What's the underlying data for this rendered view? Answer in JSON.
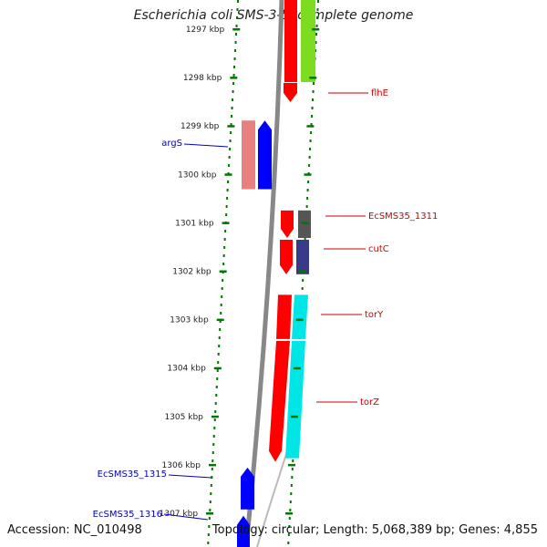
{
  "title": "Escherichia coli SMS-3-5, complete genome",
  "footer": {
    "accession": "Accession: NC_010498",
    "topology": "Topology: circular; Length: 5,068,389 bp; Genes: 4,855"
  },
  "ticks": [
    {
      "kbp": 1297,
      "label": "1297 kbp"
    },
    {
      "kbp": 1298,
      "label": "1298 kbp"
    },
    {
      "kbp": 1299,
      "label": "1299 kbp"
    },
    {
      "kbp": 1300,
      "label": "1300 kbp"
    },
    {
      "kbp": 1301,
      "label": "1301 kbp"
    },
    {
      "kbp": 1302,
      "label": "1302 kbp"
    },
    {
      "kbp": 1303,
      "label": "1303 kbp"
    },
    {
      "kbp": 1304,
      "label": "1304 kbp"
    },
    {
      "kbp": 1305,
      "label": "1305 kbp"
    },
    {
      "kbp": 1306,
      "label": "1306 kbp"
    },
    {
      "kbp": 1307,
      "label": "1307 kbp"
    }
  ],
  "colors": {
    "forward": "#ff0000",
    "reverse": "#0000ff",
    "reverse_light": "#e88080",
    "backbone": "#808080",
    "dots": "#007700",
    "label_forward": "#cc0000",
    "label_reverse": "#0000bb",
    "flhE_cog": "#7ddc20",
    "ecsms1311_cog": "#555555",
    "cutC_cog": "#3a3a8a",
    "tor_cog": "#00e5e5"
  },
  "genes": [
    {
      "name": "flhE",
      "label": "flhE",
      "strand": "forward",
      "start_kbp": 1296.6,
      "end_kbp": 1298.5,
      "cog_color_key": "flhE_cog"
    },
    {
      "name": "argS",
      "label": "argS",
      "strand": "reverse",
      "start_kbp": 1299.0,
      "end_kbp": 1300.4,
      "cog_color_key": "reverse_light"
    },
    {
      "name": "EcSMS35_1311",
      "label": "EcSMS35_1311",
      "strand": "forward",
      "start_kbp": 1300.65,
      "end_kbp": 1301.2,
      "cog_color_key": "ecsms1311_cog"
    },
    {
      "name": "cutC",
      "label": "cutC",
      "strand": "forward",
      "start_kbp": 1301.2,
      "end_kbp": 1301.95,
      "cog_color_key": "cutC_cog"
    },
    {
      "name": "torY",
      "label": "torY",
      "strand": "forward",
      "start_kbp": 1302.3,
      "end_kbp": 1303.4,
      "cog_color_key": "tor_cog"
    },
    {
      "name": "torZ",
      "label": "torZ",
      "strand": "forward",
      "start_kbp": 1303.4,
      "end_kbp": 1305.9,
      "cog_color_key": "tor_cog"
    },
    {
      "name": "EcSMS35_1315",
      "label": "EcSMS35_1315",
      "strand": "reverse",
      "start_kbp": 1306.0,
      "end_kbp": 1306.9,
      "cog_color_key": null
    },
    {
      "name": "EcSMS35_1316",
      "label": "EcSMS35_1316",
      "strand": "reverse",
      "start_kbp": 1306.9,
      "end_kbp": 1307.5,
      "cog_color_key": null
    }
  ]
}
